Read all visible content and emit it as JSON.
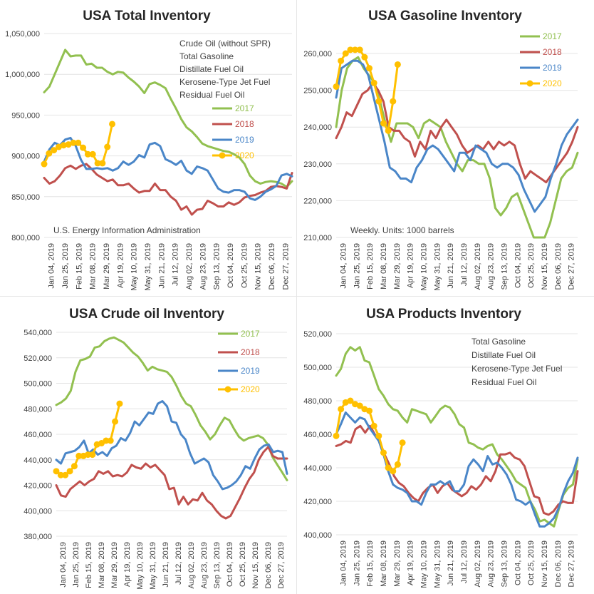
{
  "x_labels": [
    "Jan 04, 2019",
    "Jan 25, 2019",
    "Feb 15, 2019",
    "Mar 08, 2019",
    "Mar 29, 2019",
    "Apr 19, 2019",
    "May 10, 2019",
    "May 31, 2019",
    "Jun 21, 2019",
    "Jul 12, 2019",
    "Aug 02, 2019",
    "Aug 23, 2019",
    "Sep 13, 2019",
    "Oct 04, 2019",
    "Oct 25, 2019",
    "Nov 15, 2019",
    "Dec 06, 2019",
    "Dec 27, 2019"
  ],
  "colors": {
    "2017": "#92c050",
    "2018": "#c0504d",
    "2019": "#4a86c8",
    "2020": "#ffc000"
  },
  "chart_data": [
    {
      "type": "line",
      "title": "USA Total Inventory",
      "ylim": [
        800000,
        1050000
      ],
      "yticks": [
        "800,000",
        "850,000",
        "900,000",
        "950,000",
        "1,000,000",
        "1,050,000"
      ],
      "notes": [
        "Crude Oil (without SPR)",
        "Total Gasoline",
        "Distillate Fuel Oil",
        "Kerosene-Type Jet Fuel",
        "Residual Fuel Oil"
      ],
      "footnote": "U.S. Energy Information Administration",
      "series": [
        {
          "name": "2017",
          "values": [
            978000,
            985000,
            1000000,
            1015000,
            1030000,
            1022000,
            1023000,
            1023000,
            1012000,
            1013000,
            1008000,
            1008000,
            1003000,
            1000000,
            1003000,
            1002000,
            996000,
            991000,
            985000,
            977000,
            988000,
            990000,
            987000,
            983000,
            970000,
            958000,
            945000,
            935000,
            930000,
            923000,
            915000,
            912000,
            910000,
            908000,
            906000,
            905000,
            902000,
            898000,
            890000,
            876000,
            869000,
            866000,
            868000,
            869000,
            868000,
            866000,
            862000,
            869000
          ]
        },
        {
          "name": "2018",
          "values": [
            873000,
            866000,
            869000,
            876000,
            885000,
            888000,
            884000,
            888000,
            890000,
            884000,
            877000,
            873000,
            869000,
            871000,
            864000,
            864000,
            866000,
            860000,
            855000,
            857000,
            857000,
            866000,
            858000,
            858000,
            850000,
            845000,
            834000,
            838000,
            828000,
            834000,
            835000,
            845000,
            842000,
            838000,
            838000,
            843000,
            840000,
            843000,
            849000,
            851000,
            852000,
            855000,
            857000,
            862000,
            863000,
            862000,
            860000,
            879000
          ]
        },
        {
          "name": "2019",
          "values": [
            893000,
            908000,
            916000,
            913000,
            920000,
            922000,
            912000,
            895000,
            884000,
            884000,
            885000,
            884000,
            885000,
            882000,
            885000,
            893000,
            889000,
            893000,
            901000,
            898000,
            914000,
            916000,
            912000,
            896000,
            893000,
            889000,
            894000,
            882000,
            878000,
            887000,
            885000,
            882000,
            871000,
            860000,
            856000,
            855000,
            858000,
            858000,
            856000,
            848000,
            846000,
            850000,
            856000,
            859000,
            863000,
            876000,
            878000,
            875000
          ]
        },
        {
          "name": "2020",
          "values": [
            890000,
            903000,
            907000,
            911000,
            913000,
            914000,
            916000,
            916000,
            910000,
            902000,
            902000,
            891000,
            891000,
            911000,
            939000
          ]
        }
      ]
    },
    {
      "type": "line",
      "title": "USA Gasoline Inventory",
      "ylim": [
        210000,
        260000
      ],
      "yticks": [
        "210,000",
        "220,000",
        "230,000",
        "240,000",
        "250,000",
        "260,000"
      ],
      "notes": [
        "Weekly.  Units: 1000 barrels"
      ],
      "series": [
        {
          "name": "2017",
          "values": [
            240000,
            250000,
            256000,
            258000,
            259000,
            256000,
            254000,
            252000,
            247000,
            241000,
            236000,
            241000,
            241000,
            241000,
            240000,
            237000,
            241000,
            242000,
            241000,
            240000,
            236000,
            233000,
            230000,
            228000,
            231000,
            231000,
            230000,
            230000,
            226000,
            218000,
            216000,
            218000,
            221000,
            222000,
            218000,
            214000,
            210000,
            210000,
            210000,
            214000,
            220000,
            226000,
            228000,
            229000,
            233000
          ]
        },
        {
          "name": "2018",
          "values": [
            237000,
            240000,
            244000,
            243000,
            246000,
            249000,
            250000,
            252000,
            250000,
            247000,
            240000,
            239000,
            239000,
            237000,
            236000,
            232000,
            236000,
            234000,
            239000,
            237000,
            240000,
            242000,
            240000,
            238000,
            235000,
            233000,
            234000,
            235000,
            234000,
            236000,
            234000,
            236000,
            235000,
            236000,
            235000,
            230000,
            226000,
            228000,
            227000,
            226000,
            225000,
            227000,
            229000,
            231000,
            233000,
            236000,
            240000
          ]
        },
        {
          "name": "2019",
          "values": [
            248000,
            256000,
            257000,
            258000,
            258000,
            257000,
            254000,
            248000,
            242000,
            236000,
            229000,
            228000,
            226000,
            226000,
            225000,
            229000,
            231000,
            234000,
            235000,
            234000,
            232000,
            230000,
            228000,
            233000,
            233000,
            231000,
            235000,
            234000,
            233000,
            230000,
            229000,
            230000,
            230000,
            229000,
            227000,
            223000,
            220000,
            217000,
            219000,
            221000,
            226000,
            230000,
            235000,
            238000,
            240000,
            242000
          ]
        },
        {
          "name": "2020",
          "values": [
            251000,
            258000,
            260000,
            261000,
            261000,
            261000,
            259000,
            256000,
            252000,
            247000,
            241000,
            239000,
            247000,
            257000
          ]
        }
      ]
    },
    {
      "type": "line",
      "title": "USA Crude oil Inventory",
      "ylim": [
        380000,
        540000
      ],
      "yticks": [
        "380,000",
        "400,000",
        "420,000",
        "440,000",
        "460,000",
        "480,000",
        "500,000",
        "520,000",
        "540,000"
      ],
      "series": [
        {
          "name": "2017",
          "values": [
            483000,
            485000,
            488000,
            494000,
            509000,
            518000,
            519000,
            521000,
            528000,
            529000,
            533000,
            535000,
            536000,
            534000,
            532000,
            528000,
            524000,
            521000,
            516000,
            510000,
            513000,
            511000,
            510000,
            509000,
            505000,
            498000,
            490000,
            484000,
            482000,
            475000,
            467000,
            462000,
            456000,
            460000,
            467000,
            473000,
            471000,
            464000,
            458000,
            455000,
            457000,
            458000,
            459000,
            457000,
            452000,
            442000,
            436000,
            430000,
            424000
          ]
        },
        {
          "name": "2018",
          "values": [
            420000,
            412000,
            411000,
            417000,
            420000,
            423000,
            420000,
            423000,
            425000,
            431000,
            429000,
            431000,
            427000,
            428000,
            427000,
            430000,
            436000,
            434000,
            433000,
            437000,
            434000,
            436000,
            432000,
            428000,
            417000,
            418000,
            405000,
            411000,
            405000,
            409000,
            408000,
            414000,
            408000,
            405000,
            400000,
            396000,
            394000,
            396000,
            403000,
            410000,
            418000,
            425000,
            430000,
            440000,
            446000,
            450000,
            443000,
            441000,
            441000,
            441000
          ]
        },
        {
          "name": "2019",
          "values": [
            440000,
            437000,
            445000,
            446000,
            447000,
            450000,
            455000,
            445000,
            448000,
            444000,
            446000,
            443000,
            449000,
            451000,
            457000,
            455000,
            461000,
            470000,
            467000,
            472000,
            477000,
            476000,
            484000,
            486000,
            482000,
            470000,
            469000,
            460000,
            456000,
            445000,
            437000,
            439000,
            441000,
            438000,
            428000,
            423000,
            417000,
            418000,
            420000,
            423000,
            428000,
            435000,
            433000,
            441000,
            448000,
            451000,
            452000,
            446000,
            447000,
            446000,
            429000
          ]
        },
        {
          "name": "2020",
          "values": [
            431000,
            428000,
            428000,
            431000,
            435000,
            443000,
            443000,
            444000,
            444000,
            452000,
            453000,
            455000,
            455000,
            470000,
            484000
          ]
        }
      ]
    },
    {
      "type": "line",
      "title": "USA Products Inventory",
      "ylim": [
        400000,
        520000
      ],
      "yticks": [
        "400,000",
        "420,000",
        "440,000",
        "460,000",
        "480,000",
        "500,000",
        "520,000"
      ],
      "notes": [
        "Total Gasoline",
        "Distillate Fuel Oil",
        "Kerosene-Type Jet Fuel",
        "Residual Fuel Oil"
      ],
      "series": [
        {
          "name": "2017",
          "values": [
            495000,
            499000,
            508000,
            512000,
            510000,
            512000,
            504000,
            503000,
            495000,
            487000,
            483000,
            478000,
            475000,
            474000,
            470000,
            467000,
            475000,
            474000,
            473000,
            472000,
            467000,
            471000,
            475000,
            477000,
            476000,
            472000,
            466000,
            464000,
            455000,
            454000,
            452000,
            451000,
            453000,
            454000,
            448000,
            445000,
            441000,
            437000,
            432000,
            430000,
            428000,
            420000,
            415000,
            408000,
            409000,
            407000,
            405000,
            415000,
            424000,
            428000,
            430000,
            445000
          ]
        },
        {
          "name": "2018",
          "values": [
            453000,
            454000,
            456000,
            455000,
            463000,
            465000,
            461000,
            465000,
            460000,
            456000,
            448000,
            442000,
            435000,
            431000,
            429000,
            425000,
            422000,
            420000,
            425000,
            428000,
            430000,
            425000,
            429000,
            431000,
            427000,
            425000,
            423000,
            425000,
            429000,
            427000,
            430000,
            435000,
            432000,
            438000,
            448000,
            448000,
            449000,
            446000,
            445000,
            441000,
            432000,
            423000,
            422000,
            413000,
            412000,
            414000,
            418000,
            420000,
            419000,
            419000,
            438000
          ]
        },
        {
          "name": "2019",
          "values": [
            460000,
            466000,
            473000,
            470000,
            467000,
            470000,
            469000,
            464000,
            460000,
            456000,
            448000,
            438000,
            430000,
            428000,
            427000,
            425000,
            420000,
            420000,
            418000,
            425000,
            430000,
            430000,
            432000,
            430000,
            432000,
            426000,
            426000,
            430000,
            441000,
            445000,
            442000,
            438000,
            447000,
            442000,
            443000,
            440000,
            436000,
            430000,
            421000,
            420000,
            418000,
            420000,
            412000,
            405000,
            405000,
            407000,
            410000,
            416000,
            425000,
            432000,
            437000,
            446000
          ]
        },
        {
          "name": "2020",
          "values": [
            459000,
            475000,
            479000,
            480000,
            478000,
            477000,
            475000,
            474000,
            465000,
            459000,
            449000,
            440000,
            438000,
            442000,
            455000
          ]
        }
      ]
    }
  ]
}
